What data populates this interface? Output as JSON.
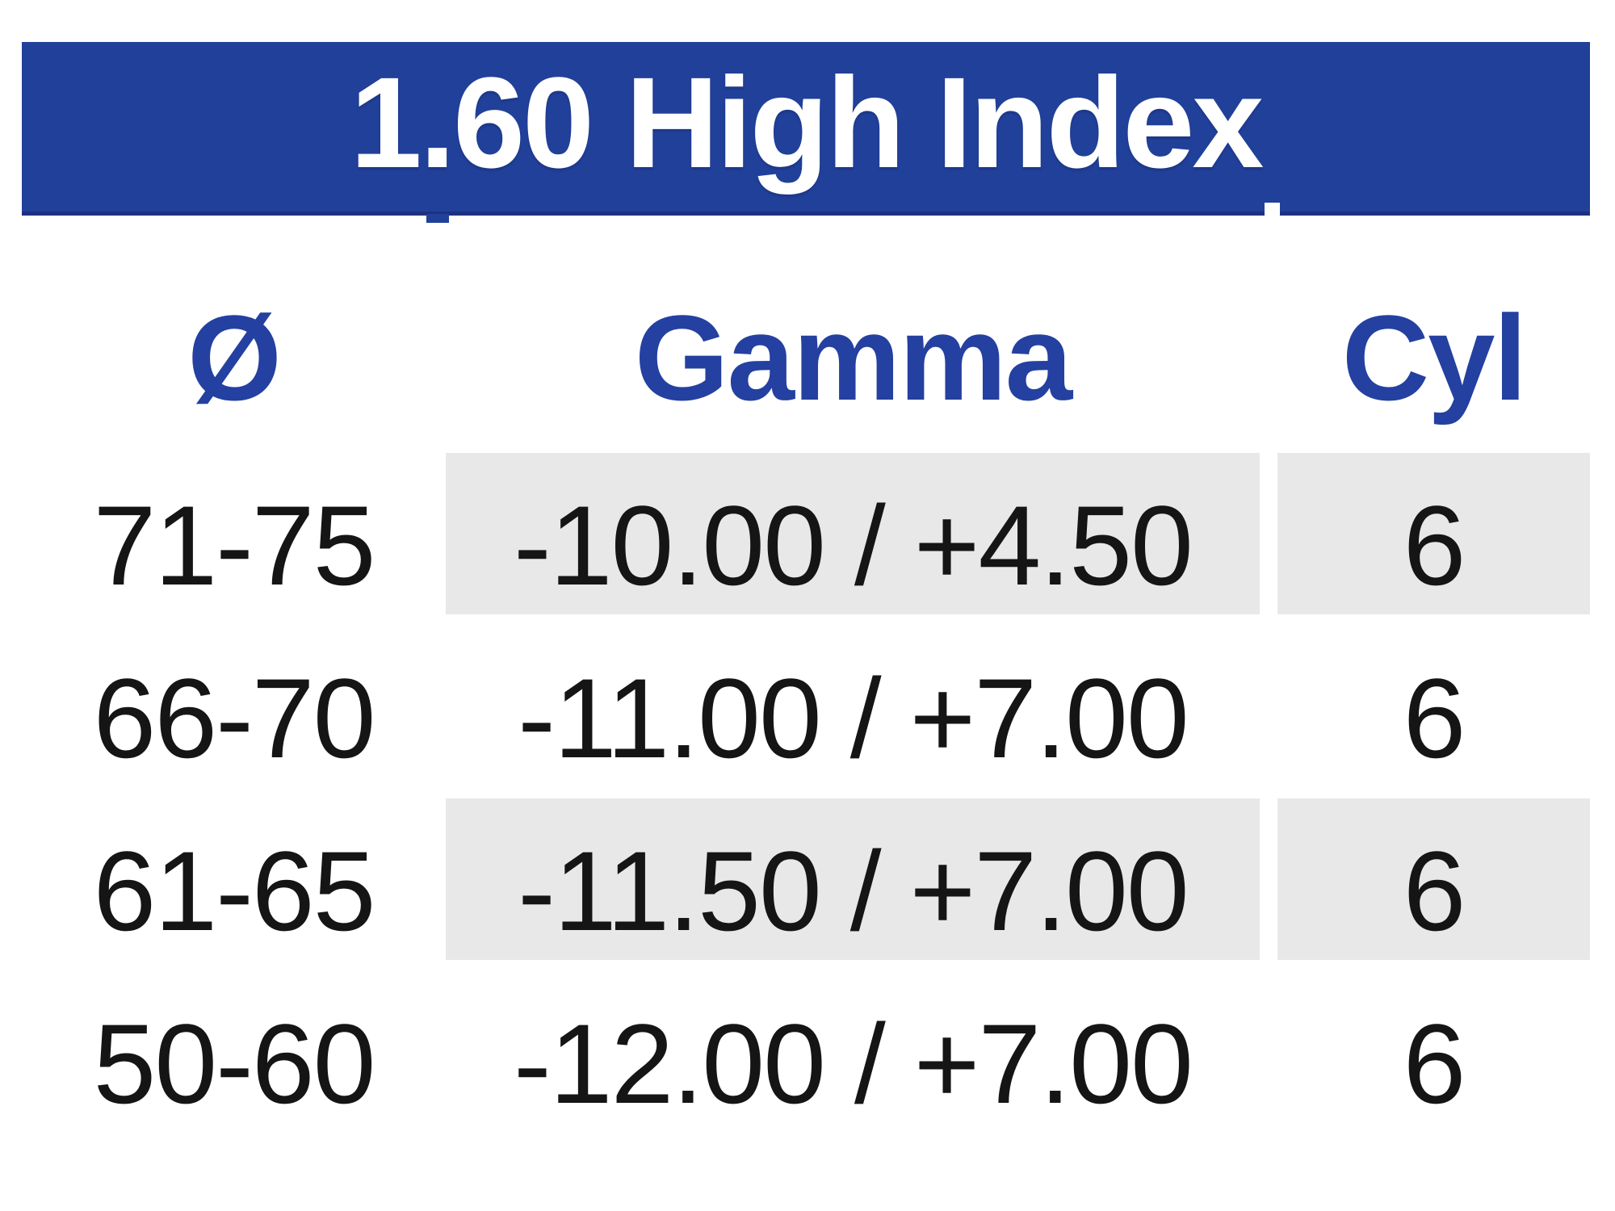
{
  "table": {
    "title": "1.60 High Index",
    "columns": {
      "diameter": {
        "label": "Ø"
      },
      "gamma": {
        "label": "Gamma"
      },
      "cyl": {
        "label": "Cyl"
      }
    },
    "rows": [
      {
        "diameter": "71-75",
        "gamma": "-10.00 / +4.50",
        "cyl": "6",
        "shaded": true
      },
      {
        "diameter": "66-70",
        "gamma": "-11.00 / +7.00",
        "cyl": "6",
        "shaded": false
      },
      {
        "diameter": "61-65",
        "gamma": "-11.50 / +7.00",
        "cyl": "6",
        "shaded": true
      },
      {
        "diameter": "50-60",
        "gamma": "-12.00 / +7.00",
        "cyl": "6",
        "shaded": false
      }
    ]
  },
  "colors": {
    "band_blue": "#21409a",
    "band_border": "#1d3180",
    "header_text_blue": "#2440a0",
    "title_text": "#ffffff",
    "row_shade_gray": "#e8e8e8",
    "data_text": "#151515"
  }
}
